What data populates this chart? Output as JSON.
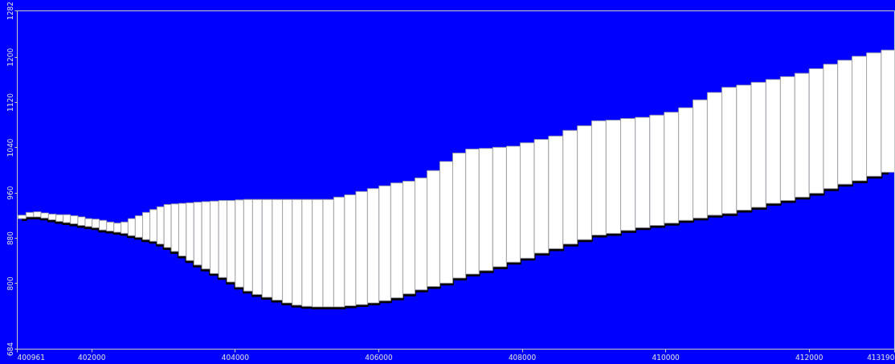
{
  "chart_data": {
    "type": "bar",
    "series": [
      {
        "color": "#ffffff",
        "values": [
          6,
          8,
          9,
          9,
          10,
          12,
          14,
          14,
          15,
          14,
          15,
          17,
          16,
          16,
          20,
          30,
          38,
          48,
          56,
          66,
          76,
          84,
          93,
          102,
          111,
          119,
          128,
          136,
          144,
          154,
          162,
          168,
          173,
          178,
          183,
          187,
          189,
          190,
          190,
          194,
          196,
          200,
          202,
          203,
          203,
          199,
          198,
          205,
          215,
          221,
          221,
          216,
          211,
          205,
          204,
          201,
          199,
          201,
          201,
          202,
          200,
          198,
          195,
          195,
          196,
          199,
          209,
          217,
          223,
          221,
          221,
          219,
          219,
          219,
          220,
          220,
          219,
          220,
          218,
          216
        ],
        "base": [
          914,
          917,
          917,
          915,
          912,
          909,
          907,
          905,
          902,
          900,
          898,
          894,
          892,
          890,
          888,
          884,
          881,
          877,
          874,
          869,
          863,
          856,
          848,
          840,
          832,
          825,
          817,
          810,
          802,
          793,
          786,
          780,
          775,
          770,
          765,
          761,
          759,
          758,
          758,
          758,
          760,
          762,
          765,
          769,
          774,
          781,
          788,
          794,
          800,
          809,
          816,
          822,
          829,
          837,
          844,
          853,
          861,
          869,
          877,
          885,
          888,
          893,
          898,
          902,
          906,
          911,
          915,
          920,
          923,
          929,
          934,
          941,
          946,
          952,
          959,
          967,
          975,
          981,
          989,
          996
        ]
      },
      {
        "type": "step",
        "color": "#000000",
        "values": [
          914,
          917,
          917,
          915,
          912,
          909,
          907,
          905,
          902,
          900,
          898,
          894,
          892,
          890,
          888,
          884,
          881,
          877,
          874,
          869,
          863,
          856,
          848,
          840,
          832,
          825,
          817,
          810,
          802,
          793,
          786,
          780,
          775,
          770,
          765,
          761,
          759,
          758,
          758,
          758,
          760,
          762,
          765,
          769,
          774,
          781,
          788,
          794,
          800,
          809,
          816,
          822,
          829,
          837,
          844,
          853,
          861,
          869,
          877,
          885,
          888,
          893,
          898,
          902,
          906,
          911,
          915,
          920,
          923,
          929,
          934,
          941,
          946,
          952,
          959,
          967,
          975,
          981,
          989,
          996
        ]
      }
    ],
    "x": [
      401032,
      401144,
      401246,
      401348,
      401455,
      401557,
      401657,
      401760,
      401864,
      401962,
      402058,
      402161,
      402263,
      402364,
      402462,
      402560,
      402662,
      402765,
      402865,
      402963,
      403061,
      403164,
      403270,
      403375,
      403481,
      403596,
      403715,
      403832,
      403947,
      404063,
      404183,
      404310,
      404449,
      404594,
      404733,
      404867,
      405004,
      405153,
      405303,
      405452,
      405606,
      405767,
      405929,
      406089,
      406256,
      406426,
      406593,
      406766,
      406946,
      407127,
      407309,
      407498,
      407690,
      407881,
      408074,
      408273,
      408473,
      408674,
      408874,
      409072,
      409275,
      409480,
      409683,
      409884,
      410085,
      410285,
      410484,
      410686,
      410891,
      411095,
      411299,
      411504,
      411704,
      411905,
      412105,
      412304,
      412502,
      412703,
      412907,
      413113
    ],
    "xlim": [
      400961,
      413190
    ],
    "ylim": [
      684,
      1282
    ],
    "xticks": [
      400961,
      402000,
      404000,
      406000,
      408000,
      410000,
      412000,
      413190
    ],
    "yticks": [
      684,
      800,
      880,
      960,
      1040,
      1120,
      1200,
      1282
    ]
  }
}
